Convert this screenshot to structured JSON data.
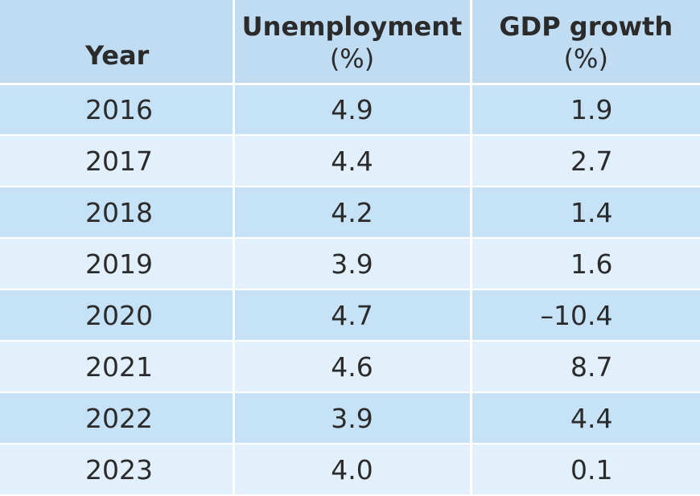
{
  "chart_data": {
    "type": "table",
    "columns": [
      {
        "line1": "Year",
        "line2": ""
      },
      {
        "line1": "Unemployment",
        "line2": "(%)"
      },
      {
        "line1": "GDP growth",
        "line2": "(%)"
      }
    ],
    "rows": [
      {
        "year": "2016",
        "unemployment": "4.9",
        "gdp_growth": "1.9"
      },
      {
        "year": "2017",
        "unemployment": "4.4",
        "gdp_growth": "2.7"
      },
      {
        "year": "2018",
        "unemployment": "4.2",
        "gdp_growth": "1.4"
      },
      {
        "year": "2019",
        "unemployment": "3.9",
        "gdp_growth": "1.6"
      },
      {
        "year": "2020",
        "unemployment": "4.7",
        "gdp_growth": "–10.4"
      },
      {
        "year": "2021",
        "unemployment": "4.6",
        "gdp_growth": "8.7"
      },
      {
        "year": "2022",
        "unemployment": "3.9",
        "gdp_growth": "4.4"
      },
      {
        "year": "2023",
        "unemployment": "4.0",
        "gdp_growth": "0.1"
      }
    ],
    "colors": {
      "header_bg": "#bfdcf2",
      "row_dark": "#c6e2f6",
      "row_light": "#e1f0fb",
      "divider": "#ffffff",
      "text": "#2b2b2b"
    }
  }
}
